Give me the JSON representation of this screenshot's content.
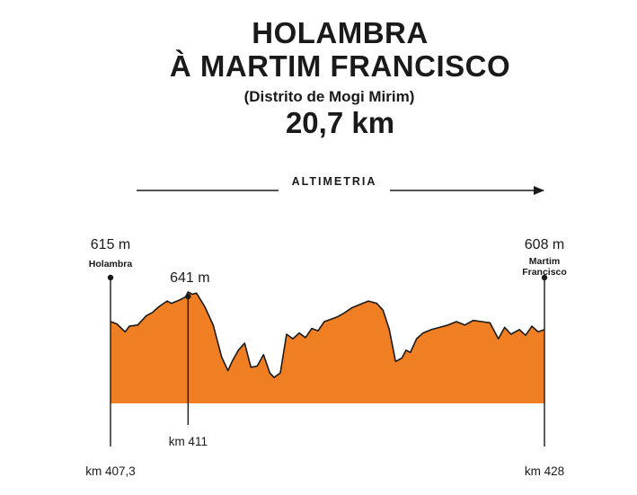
{
  "header": {
    "line1": "HOLAMBRA",
    "line2": "À MARTIM FRANCISCO",
    "district": "(Distrito de Mogi Mirim)",
    "distance": "20,7 km"
  },
  "chart_data": {
    "type": "area",
    "title": "ALTIMETRIA",
    "color": "#f07f23",
    "xlim": [
      407.3,
      428
    ],
    "profile_x": [
      407.3,
      407.6,
      408.0,
      408.2,
      408.6,
      409.0,
      409.3,
      409.6,
      410.0,
      410.2,
      410.6,
      410.9,
      411.0,
      411.2,
      411.4,
      411.8,
      412.2,
      412.6,
      412.9,
      413.1,
      413.4,
      413.7,
      414.0,
      414.3,
      414.6,
      414.9,
      415.1,
      415.4,
      415.7,
      416.0,
      416.3,
      416.6,
      416.9,
      417.2,
      417.5,
      417.8,
      418.1,
      418.4,
      418.8,
      419.2,
      419.6,
      420.0,
      420.3,
      420.6,
      420.9,
      421.2,
      421.4,
      421.6,
      421.9,
      422.2,
      422.6,
      423.0,
      423.4,
      423.8,
      424.2,
      424.6,
      425.0,
      425.4,
      425.8,
      426.1,
      426.4,
      426.8,
      427.1,
      427.4,
      427.7,
      428.0
    ],
    "profile_elev": [
      615,
      613,
      606,
      611,
      612,
      620,
      623,
      628,
      633,
      631,
      634,
      637,
      641,
      639,
      640,
      628,
      612,
      584,
      572,
      580,
      590,
      596,
      575,
      576,
      586,
      570,
      566,
      570,
      604,
      600,
      605,
      601,
      609,
      607,
      615,
      617,
      619,
      622,
      627,
      630,
      633,
      631,
      625,
      608,
      580,
      583,
      590,
      588,
      600,
      605,
      608,
      610,
      612,
      615,
      612,
      616,
      615,
      614,
      600,
      610,
      604,
      608,
      603,
      611,
      606,
      608
    ],
    "points": [
      {
        "km": 407.3,
        "km_label": "km 407,3",
        "elev": 615,
        "elev_label": "615 m",
        "name": "Holambra"
      },
      {
        "km": 411,
        "km_label": "km 411",
        "elev": 641,
        "elev_label": "641 m",
        "name": ""
      },
      {
        "km": 428,
        "km_label": "km 428",
        "elev": 608,
        "elev_label": "608 m",
        "name": "Martim Francisco"
      }
    ]
  }
}
